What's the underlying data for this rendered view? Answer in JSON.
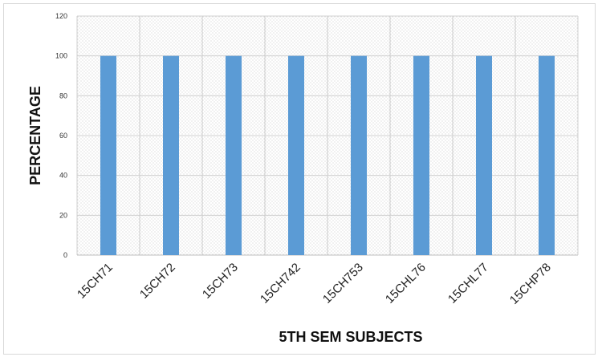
{
  "chart_data": {
    "type": "bar",
    "title": "",
    "xlabel": "5TH SEM SUBJECTS",
    "ylabel": "PERCENTAGE",
    "categories": [
      "15CH71",
      "15CH72",
      "15CH73",
      "15CH742",
      "15CH753",
      "15CHL76",
      "15CHL77",
      "15CHP78"
    ],
    "values": [
      100,
      100,
      100,
      100,
      100,
      100,
      100,
      100
    ],
    "ylim": [
      0,
      120
    ],
    "yticks": [
      0,
      20,
      40,
      60,
      80,
      100,
      120
    ],
    "grid": true,
    "legend": "none",
    "colors": {
      "bar": "#5b9bd5",
      "grid": "#d0d0d0",
      "plot_background": "#f2f2f2"
    }
  }
}
